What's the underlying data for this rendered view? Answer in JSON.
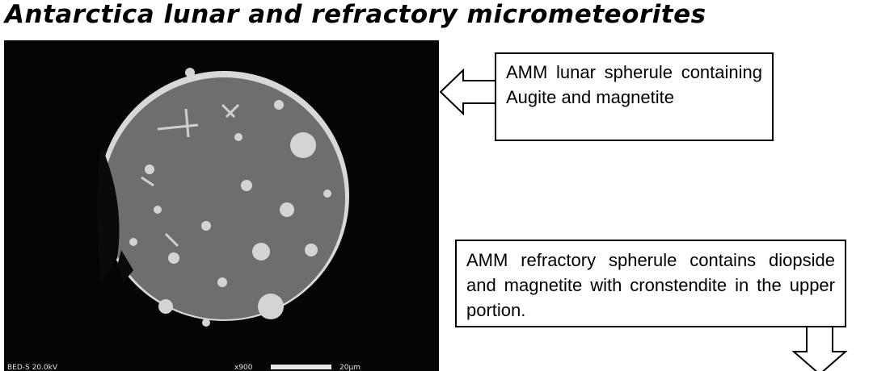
{
  "header": {
    "title": "Antarctica lunar and refractory micrometeorites"
  },
  "image": {
    "info_left": "BED-S 20.0kV",
    "info_mag": "x900",
    "info_scale": "20µm"
  },
  "callouts": [
    {
      "text": "AMM lunar spherule containing Augite and magnetite"
    },
    {
      "text": "AMM refractory spherule contains diopside and magnetite with cronstendite in the upper portion."
    }
  ]
}
